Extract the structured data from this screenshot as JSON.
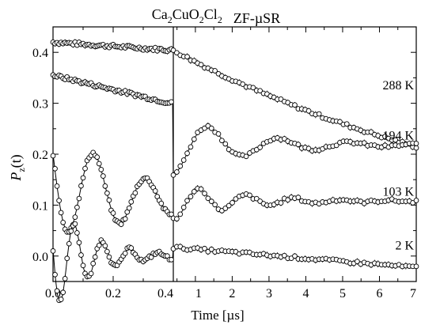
{
  "chart_data": {
    "type": "scatter",
    "title": {
      "compound": [
        [
          "Ca",
          ""
        ],
        [
          "2",
          "sub"
        ],
        [
          "CuO",
          ""
        ],
        [
          "2",
          "sub"
        ],
        [
          "Cl",
          ""
        ],
        [
          "2",
          "sub"
        ]
      ],
      "method": "ZF-µSR"
    },
    "xlabel": "Time   [µs]",
    "ylabel": {
      "main": "P",
      "sub": "z",
      "tail": "(t)"
    },
    "ylim": [
      -0.05,
      0.45
    ],
    "yticks": [
      0.0,
      0.1,
      0.2,
      0.3,
      0.4
    ],
    "ytick_labels": [
      "0.0",
      "0.1",
      "0.2",
      "0.3",
      "0.4"
    ],
    "panels": [
      {
        "name": "early",
        "xlim": [
          0.0,
          0.4
        ],
        "xticks": [
          0.0,
          0.2,
          0.4
        ],
        "xtick_labels": [
          "0.0",
          "0.2",
          "0.4"
        ],
        "scale": "linear"
      },
      {
        "name": "late",
        "xlim": [
          0.4,
          7.0
        ],
        "xticks": [
          1,
          2,
          3,
          4,
          5,
          6,
          7
        ],
        "xtick_labels": [
          "1",
          "2",
          "3",
          "4",
          "5",
          "6",
          "7"
        ],
        "scale": "linear"
      }
    ],
    "series": [
      {
        "name": "288 K",
        "model": {
          "type": "relax",
          "a": 0.42,
          "base": 0.0,
          "lambda": 0.024,
          "beta": 1.0
        }
      },
      {
        "name": "194 K",
        "model": {
          "type": "osc",
          "a": 0.12,
          "base": 0.218,
          "freq": 0.52,
          "phase": -0.35,
          "damp": 0.5,
          "early_ofs": 0.355,
          "early_slope": -0.14
        }
      },
      {
        "name": "103 K",
        "model": {
          "type": "osc",
          "a": 0.12,
          "base": 0.108,
          "freq": 5.8,
          "phase": 1.3,
          "damp": 3.6,
          "late_a": 0.035,
          "late_freq": 0.78,
          "late_damp": 0.55
        }
      },
      {
        "name": "2 K",
        "model": {
          "type": "osc",
          "a": 0.11,
          "base": 0.0,
          "freq": 10.8,
          "phase": 1.45,
          "damp": 8.0,
          "late_slope": -0.0025
        }
      }
    ]
  }
}
